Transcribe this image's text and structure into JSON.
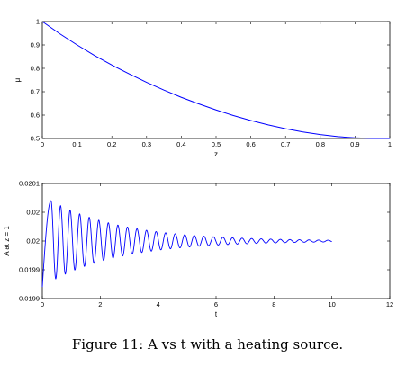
{
  "caption": "Figure 11: A vs t with a heating source.",
  "chart_data": [
    {
      "type": "line",
      "xlabel": "z",
      "ylabel": "μ",
      "xlim": [
        0,
        1
      ],
      "ylim": [
        0.5,
        1
      ],
      "xticks": [
        0,
        0.1,
        0.2,
        0.3,
        0.4,
        0.5,
        0.6,
        0.7,
        0.8,
        0.9,
        1
      ],
      "xtick_labels": [
        "0",
        "0.1",
        "0.2",
        "0.3",
        "0.4",
        "0.5",
        "0.6",
        "0.7",
        "0.8",
        "0.9",
        "1"
      ],
      "yticks": [
        0.5,
        0.6,
        0.7,
        0.8,
        0.9,
        1
      ],
      "ytick_labels": [
        "0.5",
        "0.6",
        "0.7",
        "0.8",
        "0.9",
        "1"
      ],
      "series": [
        {
          "color": "#0000ff",
          "x": [
            0,
            0.05,
            0.1,
            0.15,
            0.2,
            0.25,
            0.3,
            0.35,
            0.4,
            0.45,
            0.5,
            0.55,
            0.6,
            0.65,
            0.7,
            0.75,
            0.8,
            0.85,
            0.9,
            0.95,
            1
          ],
          "y": [
            1.0,
            0.948,
            0.9,
            0.855,
            0.814,
            0.776,
            0.74,
            0.707,
            0.676,
            0.648,
            0.622,
            0.598,
            0.577,
            0.558,
            0.542,
            0.528,
            0.517,
            0.508,
            0.503,
            0.5,
            0.5
          ]
        }
      ],
      "grid": false
    },
    {
      "type": "line",
      "xlabel": "t",
      "ylabel": "A at z = 1",
      "xlim": [
        0,
        12
      ],
      "ylim": [
        0.0199,
        0.0201
      ],
      "xticks": [
        0,
        2,
        4,
        6,
        8,
        10,
        12
      ],
      "xtick_labels": [
        "0",
        "2",
        "4",
        "6",
        "8",
        "10",
        "12"
      ],
      "yticks": [
        0.0199,
        0.01995,
        0.02,
        0.02005,
        0.0201
      ],
      "ytick_labels": [
        "0.0199",
        "0.0199",
        "0.02",
        "0.02",
        "0.0201"
      ],
      "signal": {
        "t_start": 0,
        "t_end": 10,
        "baseline": 0.02,
        "initial_value": 0.01992,
        "first_peak": [
          0.3,
          0.02007
        ],
        "first_trough": [
          0.52,
          0.01994
        ],
        "oscillation_period": 0.33,
        "decay_time": 2.5
      },
      "color": "#0000ff",
      "grid": false
    }
  ]
}
